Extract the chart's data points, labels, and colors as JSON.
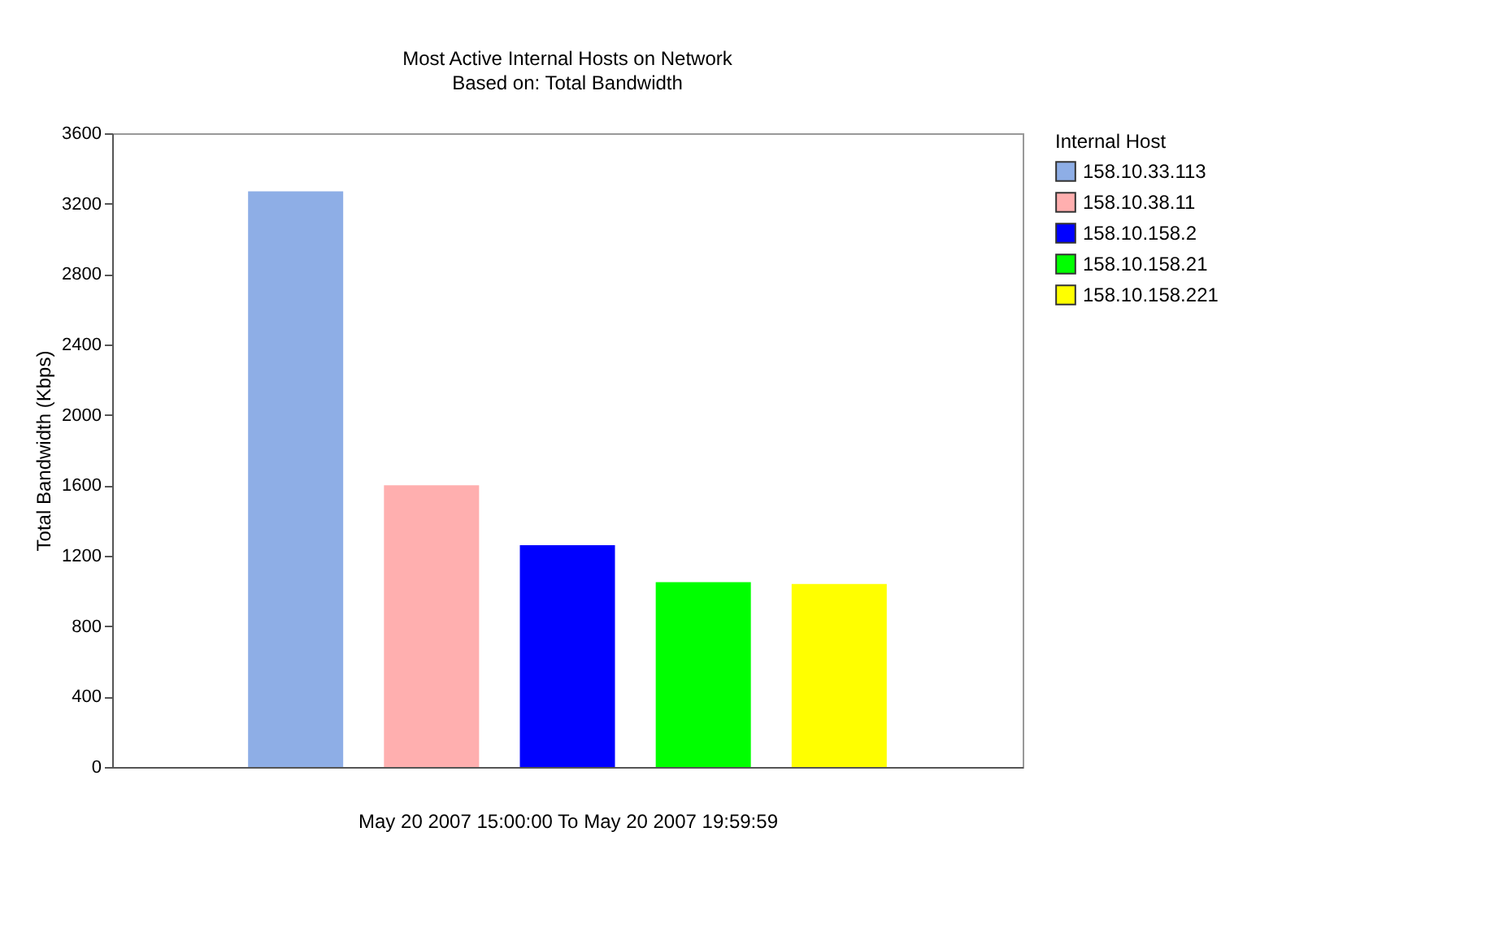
{
  "chart_data": {
    "type": "bar",
    "title": "Most Active Internal Hosts on Network",
    "subtitle": "Based on: Total Bandwidth",
    "xlabel": "May 20 2007  15:00:00  To  May 20 2007  19:59:59",
    "ylabel": "Total Bandwidth (Kbps)",
    "legend_title": "Internal Host",
    "categories": [
      null,
      null,
      null,
      null,
      null
    ],
    "series": [
      {
        "name": "158.10.33.113",
        "color": "#8eaee6",
        "values": [
          3270,
          null,
          null,
          null,
          null
        ]
      },
      {
        "name": "158.10.38.11",
        "color": "#ffafaf",
        "values": [
          null,
          1600,
          null,
          null,
          null
        ]
      },
      {
        "name": "158.10.158.2",
        "color": "#0000ff",
        "values": [
          null,
          null,
          1260,
          null,
          null
        ]
      },
      {
        "name": "158.10.158.21",
        "color": "#00ff00",
        "values": [
          null,
          null,
          null,
          1050,
          null
        ]
      },
      {
        "name": "158.10.158.221",
        "color": "#ffff00",
        "values": [
          null,
          null,
          null,
          null,
          1040
        ]
      }
    ],
    "ylim": [
      0,
      3600
    ],
    "yticks": [
      0,
      400,
      800,
      1200,
      1600,
      2000,
      2400,
      2800,
      3200,
      3600
    ],
    "grid": false,
    "stacked": true,
    "legend": "right"
  }
}
